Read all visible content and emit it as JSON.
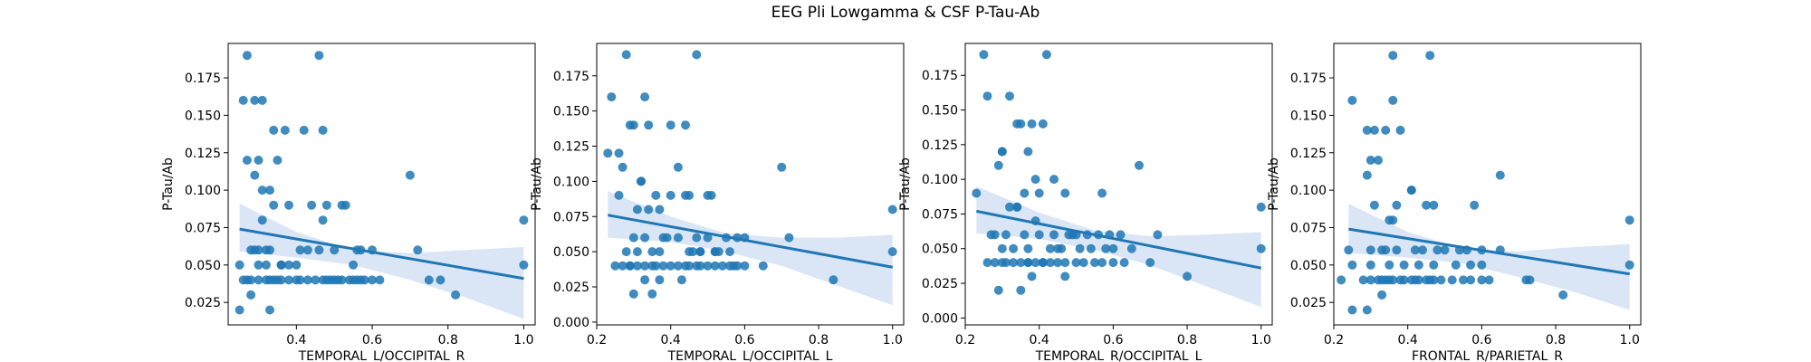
{
  "figure": {
    "title": "EEG Pli Lowgamma & CSF P-Tau-Ab"
  },
  "colors": {
    "point": "#1f77b4",
    "band": "#aec7e8",
    "axis": "#000000"
  },
  "chart_data": [
    {
      "type": "scatter",
      "xlabel": "TEMPORAL_L/OCCIPITAL_R",
      "ylabel": "P-Tau/Ab",
      "xlim": [
        0.22,
        1.03
      ],
      "ylim": [
        0.01,
        0.198
      ],
      "xticks": [
        0.4,
        0.6,
        0.8,
        1.0
      ],
      "xtick_labels": [
        "0.4",
        "0.6",
        "0.8",
        "1.0"
      ],
      "yticks": [
        0.025,
        0.05,
        0.075,
        0.1,
        0.125,
        0.15,
        0.175
      ],
      "ytick_labels": [
        "0.025",
        "0.050",
        "0.075",
        "0.100",
        "0.125",
        "0.150",
        "0.175"
      ],
      "grid": false,
      "regression": {
        "x": [
          0.25,
          1.0
        ],
        "y": [
          0.074,
          0.041
        ]
      },
      "band": [
        [
          0.25,
          0.091,
          0.059
        ],
        [
          0.4,
          0.072,
          0.055
        ],
        [
          0.55,
          0.06,
          0.05
        ],
        [
          0.7,
          0.058,
          0.04
        ],
        [
          0.85,
          0.06,
          0.028
        ],
        [
          1.0,
          0.062,
          0.014
        ]
      ],
      "x": [
        0.26,
        0.27,
        0.28,
        0.3,
        0.32,
        0.33,
        0.34,
        0.35,
        0.36,
        0.38,
        0.4,
        0.41,
        0.43,
        0.45,
        0.47,
        0.48,
        0.49,
        0.5,
        0.51,
        0.52,
        0.54,
        0.55,
        0.56,
        0.57,
        0.58,
        0.6,
        0.62,
        0.27,
        0.29,
        0.31,
        0.34,
        0.37,
        0.42,
        0.47,
        0.35,
        0.3,
        0.27,
        0.46,
        0.53,
        0.7,
        0.72,
        0.75,
        0.78,
        0.82,
        1.0,
        1.0,
        0.31,
        0.33,
        0.38,
        0.44,
        0.52,
        0.57,
        0.6,
        0.29,
        0.3,
        0.32,
        0.36,
        0.4,
        0.46,
        0.56,
        0.25,
        0.28,
        0.33,
        0.36,
        0.41,
        0.48,
        0.31,
        0.34,
        0.5,
        0.43,
        0.26,
        0.29,
        0.47,
        0.33,
        0.28,
        0.3,
        0.32,
        0.25,
        0.38,
        0.55
      ],
      "y": [
        0.04,
        0.04,
        0.04,
        0.04,
        0.04,
        0.04,
        0.04,
        0.04,
        0.04,
        0.04,
        0.04,
        0.04,
        0.04,
        0.04,
        0.04,
        0.04,
        0.04,
        0.04,
        0.04,
        0.04,
        0.04,
        0.04,
        0.04,
        0.04,
        0.04,
        0.04,
        0.04,
        0.19,
        0.16,
        0.16,
        0.14,
        0.14,
        0.14,
        0.14,
        0.12,
        0.12,
        0.12,
        0.19,
        0.09,
        0.11,
        0.06,
        0.04,
        0.04,
        0.03,
        0.08,
        0.05,
        0.1,
        0.1,
        0.09,
        0.09,
        0.09,
        0.06,
        0.06,
        0.06,
        0.06,
        0.06,
        0.05,
        0.05,
        0.06,
        0.06,
        0.02,
        0.03,
        0.02,
        0.05,
        0.06,
        0.09,
        0.08,
        0.09,
        0.06,
        0.06,
        0.16,
        0.11,
        0.08,
        0.06,
        0.06,
        0.05,
        0.05,
        0.05,
        0.05,
        0.05
      ]
    },
    {
      "type": "scatter",
      "xlabel": "TEMPORAL_L/OCCIPITAL_L",
      "ylabel": "P-Tau/Ab",
      "xlim": [
        0.2,
        1.03
      ],
      "ylim": [
        -0.002,
        0.198
      ],
      "xticks": [
        0.2,
        0.4,
        0.6,
        0.8,
        1.0
      ],
      "xtick_labels": [
        "0.2",
        "0.4",
        "0.6",
        "0.8",
        "1.0"
      ],
      "yticks": [
        0.0,
        0.025,
        0.05,
        0.075,
        0.1,
        0.125,
        0.15,
        0.175
      ],
      "ytick_labels": [
        "0.000",
        "0.025",
        "0.050",
        "0.075",
        "0.100",
        "0.125",
        "0.150",
        "0.175"
      ],
      "grid": false,
      "regression": {
        "x": [
          0.23,
          1.0
        ],
        "y": [
          0.076,
          0.039
        ]
      },
      "band": [
        [
          0.23,
          0.093,
          0.06
        ],
        [
          0.4,
          0.075,
          0.057
        ],
        [
          0.55,
          0.063,
          0.05
        ],
        [
          0.7,
          0.06,
          0.04
        ],
        [
          0.85,
          0.06,
          0.026
        ],
        [
          1.0,
          0.062,
          0.012
        ]
      ],
      "x": [
        0.25,
        0.27,
        0.29,
        0.31,
        0.33,
        0.35,
        0.36,
        0.38,
        0.4,
        0.42,
        0.44,
        0.45,
        0.47,
        0.5,
        0.52,
        0.54,
        0.56,
        0.58,
        0.6,
        0.28,
        0.33,
        0.4,
        0.44,
        0.23,
        0.24,
        0.29,
        0.47,
        0.3,
        0.26,
        0.34,
        0.37,
        0.32,
        0.32,
        0.42,
        0.45,
        0.5,
        0.51,
        0.7,
        0.72,
        0.84,
        1.0,
        1.0,
        0.3,
        0.33,
        0.38,
        0.42,
        0.47,
        0.5,
        0.55,
        0.58,
        0.6,
        0.28,
        0.31,
        0.35,
        0.37,
        0.45,
        0.48,
        0.52,
        0.27,
        0.31,
        0.36,
        0.4,
        0.44,
        0.48,
        0.53,
        0.56,
        0.3,
        0.35,
        0.48,
        0.29,
        0.33,
        0.37,
        0.43,
        0.26,
        0.34,
        0.39,
        0.46,
        0.52,
        0.57,
        0.65
      ],
      "y": [
        0.04,
        0.04,
        0.04,
        0.04,
        0.04,
        0.04,
        0.04,
        0.04,
        0.04,
        0.04,
        0.04,
        0.04,
        0.04,
        0.04,
        0.04,
        0.04,
        0.04,
        0.04,
        0.04,
        0.19,
        0.16,
        0.14,
        0.14,
        0.12,
        0.16,
        0.14,
        0.19,
        0.14,
        0.12,
        0.14,
        0.08,
        0.1,
        0.1,
        0.11,
        0.09,
        0.09,
        0.09,
        0.11,
        0.06,
        0.03,
        0.08,
        0.05,
        0.06,
        0.06,
        0.06,
        0.06,
        0.06,
        0.06,
        0.06,
        0.06,
        0.06,
        0.05,
        0.05,
        0.05,
        0.05,
        0.05,
        0.05,
        0.05,
        0.11,
        0.08,
        0.09,
        0.09,
        0.09,
        0.05,
        0.05,
        0.05,
        0.02,
        0.02,
        0.04,
        0.04,
        0.03,
        0.03,
        0.03,
        0.09,
        0.08,
        0.06,
        0.05,
        0.05,
        0.04,
        0.04
      ]
    },
    {
      "type": "scatter",
      "xlabel": "TEMPORAL_R/OCCIPITAL_L",
      "ylabel": "P-Tau/Ab",
      "xlim": [
        0.2,
        1.03
      ],
      "ylim": [
        -0.005,
        0.198
      ],
      "xticks": [
        0.2,
        0.4,
        0.6,
        0.8,
        1.0
      ],
      "xtick_labels": [
        "0.2",
        "0.4",
        "0.6",
        "0.8",
        "1.0"
      ],
      "yticks": [
        0.0,
        0.025,
        0.05,
        0.075,
        0.1,
        0.125,
        0.15,
        0.175
      ],
      "ytick_labels": [
        "0.000",
        "0.025",
        "0.050",
        "0.075",
        "0.100",
        "0.125",
        "0.150",
        "0.175"
      ],
      "grid": false,
      "regression": {
        "x": [
          0.23,
          1.0
        ],
        "y": [
          0.077,
          0.036
        ]
      },
      "band": [
        [
          0.23,
          0.095,
          0.061
        ],
        [
          0.4,
          0.076,
          0.057
        ],
        [
          0.55,
          0.063,
          0.049
        ],
        [
          0.7,
          0.059,
          0.038
        ],
        [
          0.85,
          0.06,
          0.023
        ],
        [
          1.0,
          0.062,
          0.008
        ]
      ],
      "x": [
        0.26,
        0.28,
        0.3,
        0.31,
        0.33,
        0.35,
        0.37,
        0.39,
        0.41,
        0.43,
        0.45,
        0.47,
        0.5,
        0.52,
        0.55,
        0.57,
        0.6,
        0.63,
        0.25,
        0.32,
        0.42,
        0.26,
        0.34,
        0.35,
        0.38,
        0.41,
        0.29,
        0.3,
        0.37,
        0.34,
        0.44,
        0.39,
        0.47,
        0.57,
        0.67,
        0.23,
        0.27,
        0.31,
        0.36,
        0.4,
        0.44,
        0.48,
        0.5,
        0.53,
        0.56,
        0.59,
        0.62,
        0.3,
        0.33,
        0.37,
        0.43,
        0.46,
        0.51,
        0.54,
        0.58,
        0.7,
        0.72,
        0.8,
        1.0,
        1.0,
        0.36,
        0.4,
        0.45,
        0.49,
        0.65,
        0.29,
        0.35,
        0.38,
        0.3,
        0.32,
        0.34,
        0.37,
        0.41,
        0.47,
        0.6,
        0.28,
        0.39
      ],
      "y": [
        0.04,
        0.04,
        0.04,
        0.04,
        0.04,
        0.04,
        0.04,
        0.04,
        0.04,
        0.04,
        0.04,
        0.04,
        0.04,
        0.04,
        0.04,
        0.04,
        0.04,
        0.04,
        0.19,
        0.16,
        0.19,
        0.16,
        0.14,
        0.14,
        0.14,
        0.14,
        0.11,
        0.12,
        0.12,
        0.08,
        0.1,
        0.1,
        0.09,
        0.09,
        0.11,
        0.09,
        0.06,
        0.06,
        0.06,
        0.06,
        0.06,
        0.06,
        0.06,
        0.06,
        0.06,
        0.06,
        0.06,
        0.05,
        0.05,
        0.05,
        0.05,
        0.05,
        0.05,
        0.05,
        0.05,
        0.04,
        0.06,
        0.03,
        0.08,
        0.05,
        0.09,
        0.09,
        0.05,
        0.06,
        0.05,
        0.02,
        0.02,
        0.03,
        0.12,
        0.08,
        0.08,
        0.04,
        0.04,
        0.03,
        0.05,
        0.06,
        0.07
      ]
    },
    {
      "type": "scatter",
      "xlabel": "FRONTAL_R/PARIETAL_R",
      "ylabel": "P-Tau/Ab",
      "xlim": [
        0.2,
        1.03
      ],
      "ylim": [
        0.01,
        0.198
      ],
      "xticks": [
        0.2,
        0.4,
        0.6,
        0.8,
        1.0
      ],
      "xtick_labels": [
        "0.2",
        "0.4",
        "0.6",
        "0.8",
        "1.0"
      ],
      "yticks": [
        0.025,
        0.05,
        0.075,
        0.1,
        0.125,
        0.15,
        0.175
      ],
      "ytick_labels": [
        "0.025",
        "0.050",
        "0.075",
        "0.100",
        "0.125",
        "0.150",
        "0.175"
      ],
      "grid": false,
      "regression": {
        "x": [
          0.24,
          1.0
        ],
        "y": [
          0.074,
          0.044
        ]
      },
      "band": [
        [
          0.24,
          0.091,
          0.058
        ],
        [
          0.4,
          0.072,
          0.055
        ],
        [
          0.55,
          0.061,
          0.051
        ],
        [
          0.7,
          0.059,
          0.042
        ],
        [
          0.85,
          0.062,
          0.032
        ],
        [
          1.0,
          0.064,
          0.02
        ]
      ],
      "x": [
        0.22,
        0.28,
        0.3,
        0.32,
        0.33,
        0.34,
        0.35,
        0.36,
        0.38,
        0.39,
        0.41,
        0.43,
        0.45,
        0.47,
        0.49,
        0.52,
        0.55,
        0.57,
        0.6,
        0.62,
        0.36,
        0.46,
        0.25,
        0.36,
        0.29,
        0.31,
        0.34,
        0.38,
        0.3,
        0.32,
        0.29,
        0.35,
        0.36,
        0.41,
        0.41,
        0.45,
        0.47,
        0.58,
        0.65,
        0.24,
        0.3,
        0.33,
        0.34,
        0.37,
        0.42,
        0.44,
        0.48,
        0.5,
        0.54,
        0.56,
        0.6,
        0.65,
        0.25,
        0.3,
        0.35,
        0.39,
        0.43,
        0.47,
        0.53,
        0.57,
        0.6,
        0.72,
        0.73,
        0.82,
        1.0,
        1.0,
        0.25,
        0.29,
        0.33,
        0.31,
        0.37,
        0.42,
        0.46
      ],
      "y": [
        0.04,
        0.04,
        0.04,
        0.04,
        0.04,
        0.04,
        0.04,
        0.04,
        0.04,
        0.04,
        0.04,
        0.04,
        0.04,
        0.04,
        0.04,
        0.04,
        0.04,
        0.04,
        0.04,
        0.04,
        0.19,
        0.19,
        0.16,
        0.16,
        0.14,
        0.14,
        0.14,
        0.14,
        0.12,
        0.12,
        0.11,
        0.08,
        0.08,
        0.1,
        0.1,
        0.09,
        0.09,
        0.09,
        0.11,
        0.06,
        0.06,
        0.06,
        0.06,
        0.06,
        0.06,
        0.06,
        0.06,
        0.06,
        0.06,
        0.06,
        0.06,
        0.06,
        0.05,
        0.05,
        0.05,
        0.05,
        0.05,
        0.05,
        0.05,
        0.05,
        0.05,
        0.04,
        0.04,
        0.03,
        0.08,
        0.05,
        0.02,
        0.02,
        0.03,
        0.09,
        0.09,
        0.04,
        0.04
      ]
    }
  ]
}
